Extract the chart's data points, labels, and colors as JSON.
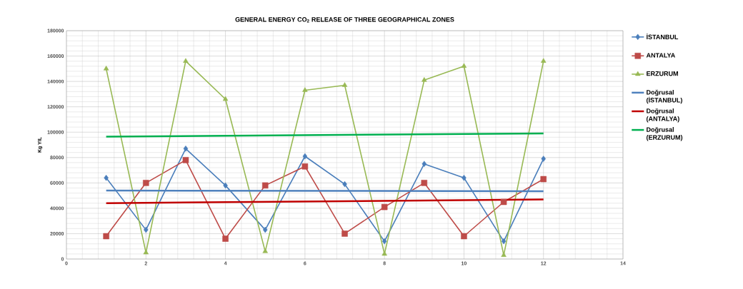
{
  "chart_data": {
    "type": "line",
    "title": "GENERAL ENERGY CO$_{2}$ RELEASE OF THREE GEOGRAPHICAL ZONES",
    "ylabel": "Kg YIL",
    "xlim": [
      0,
      14
    ],
    "xticks": [
      0,
      2,
      4,
      6,
      8,
      10,
      12,
      14
    ],
    "ylim": [
      0,
      180000
    ],
    "yticks": [
      0,
      20000,
      40000,
      60000,
      80000,
      100000,
      120000,
      140000,
      160000,
      180000
    ],
    "grid": true,
    "legend": "right",
    "line_style": "solid",
    "series": [
      {
        "name": "İSTANBUL",
        "color": "#4a7ebb",
        "marker": "diamond",
        "x": [
          1,
          2,
          3,
          4,
          5,
          6,
          7,
          8,
          9,
          10,
          11,
          12
        ],
        "values": [
          64000,
          23000,
          87000,
          58000,
          23000,
          81000,
          59000,
          14000,
          75000,
          64000,
          14000,
          79000
        ]
      },
      {
        "name": "ANTALYA",
        "color": "#be4b48",
        "marker": "square",
        "x": [
          1,
          2,
          3,
          4,
          5,
          6,
          7,
          8,
          9,
          10,
          11,
          12
        ],
        "values": [
          18000,
          60000,
          78000,
          16000,
          58000,
          73000,
          20000,
          41000,
          60000,
          18000,
          45000,
          63000
        ]
      },
      {
        "name": "ERZURUM",
        "color": "#98b954",
        "marker": "triangle",
        "x": [
          1,
          2,
          3,
          4,
          5,
          6,
          7,
          8,
          9,
          10,
          11,
          12
        ],
        "values": [
          150000,
          5000,
          156000,
          126000,
          6000,
          133000,
          137000,
          4000,
          141000,
          152000,
          3000,
          156000
        ]
      },
      {
        "name": "Doğrusal (İSTANBUL)",
        "color": "#4f81bd",
        "marker": "none",
        "type": "line",
        "x": [
          1,
          12
        ],
        "values": [
          54000,
          53500
        ]
      },
      {
        "name": "Doğrusal (ANTALYA)",
        "color": "#c00000",
        "marker": "none",
        "type": "line",
        "x": [
          1,
          12
        ],
        "values": [
          44000,
          47000
        ]
      },
      {
        "name": "Doğrusal (ERZURUM)",
        "color": "#00b050",
        "marker": "none",
        "type": "line",
        "x": [
          1,
          12
        ],
        "values": [
          96500,
          99000
        ]
      }
    ]
  }
}
